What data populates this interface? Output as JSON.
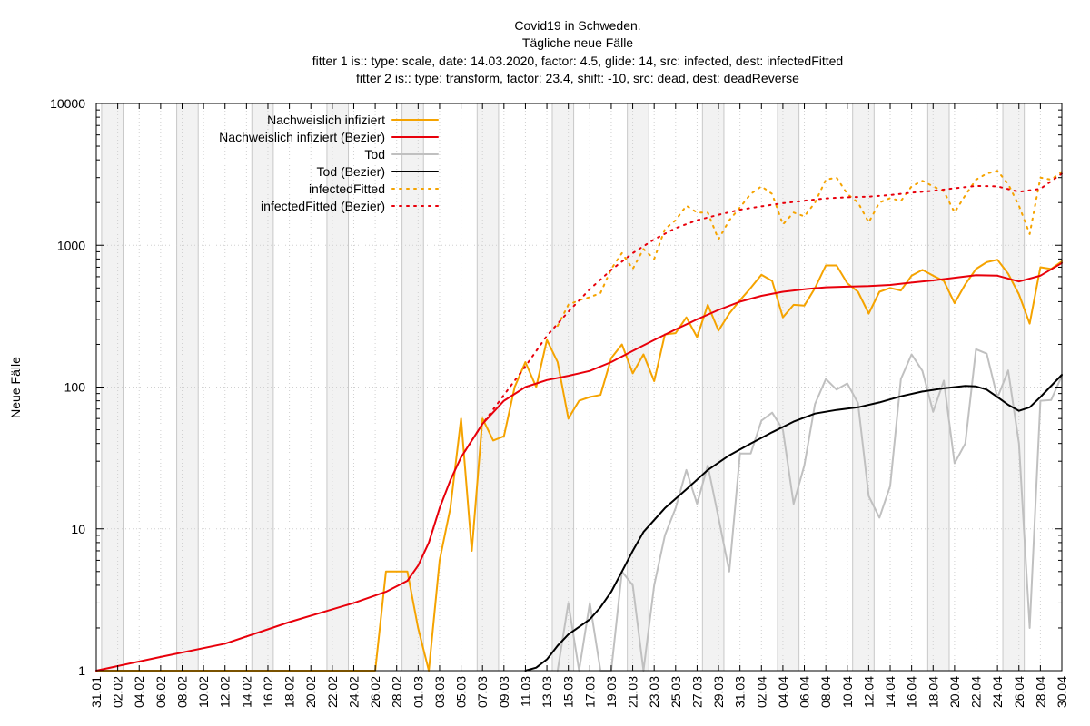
{
  "chart_data": {
    "type": "line",
    "title_lines": [
      "Covid19 in Schweden.",
      "Tägliche neue Fälle",
      "fitter 1 is:: type: scale, date: 14.03.2020, factor: 4.5, glide: 14, src: infected, dest: infectedFitted",
      "fitter 2 is:: type: transform, factor: 23.4, shift: -10, src: dead, dest: deadReverse"
    ],
    "ylabel": "Neue Fälle",
    "yscale": "log",
    "ylim": [
      1,
      10000
    ],
    "yticks": [
      1,
      10,
      100,
      1000,
      10000
    ],
    "ytick_labels": [
      "1",
      "10",
      "100",
      "1000",
      "10000"
    ],
    "x_start": "31.01",
    "x_end": "30.04",
    "xtick_labels": [
      "31.01",
      "02.02",
      "04.02",
      "06.02",
      "08.02",
      "10.02",
      "12.02",
      "14.02",
      "16.02",
      "18.02",
      "20.02",
      "22.02",
      "24.02",
      "26.02",
      "28.02",
      "01.03",
      "03.03",
      "05.03",
      "07.03",
      "09.03",
      "11.03",
      "13.03",
      "15.03",
      "17.03",
      "19.03",
      "21.03",
      "23.03",
      "25.03",
      "27.03",
      "29.03",
      "31.03",
      "02.04",
      "04.04",
      "06.04",
      "08.04",
      "10.04",
      "12.04",
      "14.04",
      "16.04",
      "18.04",
      "20.04",
      "22.04",
      "24.04",
      "26.04",
      "28.04",
      "30.04"
    ],
    "weekend_bands": [
      [
        "01.02",
        "02.02"
      ],
      [
        "08.02",
        "09.02"
      ],
      [
        "15.02",
        "16.02"
      ],
      [
        "22.02",
        "23.02"
      ],
      [
        "29.02",
        "01.03"
      ],
      [
        "07.03",
        "08.03"
      ],
      [
        "14.03",
        "15.03"
      ],
      [
        "21.03",
        "22.03"
      ],
      [
        "28.03",
        "29.03"
      ],
      [
        "04.04",
        "05.04"
      ],
      [
        "11.04",
        "12.04"
      ],
      [
        "18.04",
        "19.04"
      ],
      [
        "25.04",
        "26.04"
      ]
    ],
    "grid": true,
    "legend_position": "top-left",
    "series": [
      {
        "name": "Nachweislich infiziert",
        "color": "#f5a300",
        "style": "solid",
        "points": [
          [
            "31.01",
            1
          ],
          [
            "26.02",
            1
          ],
          [
            "27.02",
            5
          ],
          [
            "29.02",
            5
          ],
          [
            "01.03",
            2
          ],
          [
            "02.03",
            1
          ],
          [
            "03.03",
            6
          ],
          [
            "04.03",
            14
          ],
          [
            "05.03",
            60
          ],
          [
            "06.03",
            7
          ],
          [
            "07.03",
            60
          ],
          [
            "08.03",
            42
          ],
          [
            "09.03",
            45
          ],
          [
            "10.03",
            100
          ],
          [
            "11.03",
            150
          ],
          [
            "12.03",
            100
          ],
          [
            "13.03",
            215
          ],
          [
            "14.03",
            150
          ],
          [
            "15.03",
            60
          ],
          [
            "16.03",
            80
          ],
          [
            "17.03",
            85
          ],
          [
            "18.03",
            88
          ],
          [
            "19.03",
            160
          ],
          [
            "20.03",
            200
          ],
          [
            "21.03",
            125
          ],
          [
            "22.03",
            170
          ],
          [
            "23.03",
            110
          ],
          [
            "24.03",
            235
          ],
          [
            "25.03",
            240
          ],
          [
            "26.03",
            310
          ],
          [
            "27.03",
            225
          ],
          [
            "28.03",
            380
          ],
          [
            "29.03",
            250
          ],
          [
            "30.03",
            330
          ],
          [
            "31.03",
            410
          ],
          [
            "01.04",
            500
          ],
          [
            "02.04",
            620
          ],
          [
            "03.04",
            560
          ],
          [
            "04.04",
            310
          ],
          [
            "05.04",
            380
          ],
          [
            "06.04",
            375
          ],
          [
            "07.04",
            500
          ],
          [
            "08.04",
            720
          ],
          [
            "09.04",
            720
          ],
          [
            "10.04",
            540
          ],
          [
            "11.04",
            470
          ],
          [
            "12.04",
            330
          ],
          [
            "13.04",
            470
          ],
          [
            "14.04",
            500
          ],
          [
            "15.04",
            480
          ],
          [
            "16.04",
            610
          ],
          [
            "17.04",
            670
          ],
          [
            "18.04",
            610
          ],
          [
            "19.04",
            560
          ],
          [
            "20.04",
            390
          ],
          [
            "21.04",
            530
          ],
          [
            "22.04",
            680
          ],
          [
            "23.04",
            760
          ],
          [
            "24.04",
            790
          ],
          [
            "25.04",
            630
          ],
          [
            "26.04",
            450
          ],
          [
            "27.04",
            280
          ],
          [
            "28.04",
            700
          ],
          [
            "29.04",
            680
          ],
          [
            "30.04",
            770
          ]
        ]
      },
      {
        "name": "Nachweislich infiziert (Bezier)",
        "color": "#e8000b",
        "style": "solid",
        "points": [
          [
            "31.01",
            1
          ],
          [
            "06.02",
            1.25
          ],
          [
            "12.02",
            1.55
          ],
          [
            "18.02",
            2.2
          ],
          [
            "24.02",
            3.0
          ],
          [
            "27.02",
            3.6
          ],
          [
            "29.02",
            4.3
          ],
          [
            "01.03",
            5.5
          ],
          [
            "02.03",
            8
          ],
          [
            "03.03",
            14
          ],
          [
            "04.03",
            22
          ],
          [
            "05.03",
            32
          ],
          [
            "07.03",
            55
          ],
          [
            "09.03",
            80
          ],
          [
            "11.03",
            100
          ],
          [
            "13.03",
            112
          ],
          [
            "15.03",
            120
          ],
          [
            "17.03",
            130
          ],
          [
            "19.03",
            150
          ],
          [
            "21.03",
            180
          ],
          [
            "23.03",
            215
          ],
          [
            "25.03",
            255
          ],
          [
            "27.03",
            300
          ],
          [
            "29.03",
            350
          ],
          [
            "31.03",
            400
          ],
          [
            "02.04",
            440
          ],
          [
            "04.04",
            470
          ],
          [
            "06.04",
            490
          ],
          [
            "08.04",
            505
          ],
          [
            "10.04",
            510
          ],
          [
            "12.04",
            515
          ],
          [
            "14.04",
            525
          ],
          [
            "16.04",
            545
          ],
          [
            "18.04",
            565
          ],
          [
            "20.04",
            590
          ],
          [
            "22.04",
            615
          ],
          [
            "24.04",
            610
          ],
          [
            "26.04",
            555
          ],
          [
            "28.04",
            610
          ],
          [
            "30.04",
            750
          ]
        ]
      },
      {
        "name": "Tod",
        "color": "#c0c0c0",
        "style": "solid",
        "points": [
          [
            "14.03",
            1
          ],
          [
            "15.03",
            3
          ],
          [
            "16.03",
            1
          ],
          [
            "17.03",
            3
          ],
          [
            "18.03",
            1
          ],
          [
            "19.03",
            1
          ],
          [
            "20.03",
            5
          ],
          [
            "21.03",
            4
          ],
          [
            "22.03",
            1
          ],
          [
            "23.03",
            4
          ],
          [
            "24.03",
            9
          ],
          [
            "25.03",
            14
          ],
          [
            "26.03",
            26
          ],
          [
            "27.03",
            15
          ],
          [
            "28.03",
            28
          ],
          [
            "29.03",
            12
          ],
          [
            "30.03",
            5
          ],
          [
            "31.03",
            34
          ],
          [
            "01.04",
            34
          ],
          [
            "02.04",
            58
          ],
          [
            "03.04",
            66
          ],
          [
            "04.04",
            50
          ],
          [
            "05.04",
            15
          ],
          [
            "06.04",
            28
          ],
          [
            "07.04",
            76
          ],
          [
            "08.04",
            114
          ],
          [
            "09.04",
            96
          ],
          [
            "10.04",
            106
          ],
          [
            "11.04",
            77
          ],
          [
            "12.04",
            17
          ],
          [
            "13.04",
            12
          ],
          [
            "14.04",
            20
          ],
          [
            "15.04",
            114
          ],
          [
            "16.04",
            170
          ],
          [
            "17.04",
            130
          ],
          [
            "18.04",
            67
          ],
          [
            "19.04",
            111
          ],
          [
            "20.04",
            29
          ],
          [
            "21.04",
            40
          ],
          [
            "22.04",
            185
          ],
          [
            "23.04",
            172
          ],
          [
            "24.04",
            84
          ],
          [
            "25.04",
            131
          ],
          [
            "26.04",
            40
          ],
          [
            "27.04",
            2
          ],
          [
            "28.04",
            80
          ],
          [
            "29.04",
            81
          ],
          [
            "30.04",
            120
          ]
        ]
      },
      {
        "name": "Tod (Bezier)",
        "color": "#000000",
        "style": "solid",
        "points": [
          [
            "11.03",
            1
          ],
          [
            "12.03",
            1.05
          ],
          [
            "13.03",
            1.2
          ],
          [
            "14.03",
            1.5
          ],
          [
            "15.03",
            1.8
          ],
          [
            "17.03",
            2.3
          ],
          [
            "18.03",
            2.8
          ],
          [
            "19.03",
            3.6
          ],
          [
            "20.03",
            5
          ],
          [
            "21.03",
            7
          ],
          [
            "22.03",
            9.5
          ],
          [
            "24.03",
            14
          ],
          [
            "26.03",
            19
          ],
          [
            "28.03",
            26
          ],
          [
            "30.03",
            33
          ],
          [
            "01.04",
            40
          ],
          [
            "03.04",
            48
          ],
          [
            "05.04",
            57
          ],
          [
            "07.04",
            65
          ],
          [
            "09.04",
            69
          ],
          [
            "11.04",
            72
          ],
          [
            "13.04",
            78
          ],
          [
            "15.04",
            86
          ],
          [
            "17.04",
            93
          ],
          [
            "19.04",
            98
          ],
          [
            "21.04",
            102
          ],
          [
            "22.04",
            101
          ],
          [
            "23.04",
            96
          ],
          [
            "24.04",
            85
          ],
          [
            "25.04",
            75
          ],
          [
            "26.04",
            68
          ],
          [
            "27.04",
            72
          ],
          [
            "28.04",
            85
          ],
          [
            "30.04",
            122
          ]
        ]
      },
      {
        "name": "infectedFitted",
        "color": "#f5a300",
        "style": "dotted",
        "points": [
          [
            "14.03",
            270
          ],
          [
            "15.03",
            380
          ],
          [
            "16.03",
            410
          ],
          [
            "17.03",
            430
          ],
          [
            "18.03",
            460
          ],
          [
            "19.03",
            680
          ],
          [
            "20.03",
            880
          ],
          [
            "21.03",
            680
          ],
          [
            "22.03",
            940
          ],
          [
            "23.03",
            800
          ],
          [
            "24.03",
            1300
          ],
          [
            "25.03",
            1500
          ],
          [
            "26.03",
            1900
          ],
          [
            "27.03",
            1700
          ],
          [
            "28.03",
            1700
          ],
          [
            "29.03",
            1100
          ],
          [
            "30.03",
            1500
          ],
          [
            "31.03",
            1850
          ],
          [
            "01.04",
            2300
          ],
          [
            "02.04",
            2600
          ],
          [
            "03.04",
            2300
          ],
          [
            "04.04",
            1400
          ],
          [
            "05.04",
            1700
          ],
          [
            "06.04",
            1600
          ],
          [
            "07.04",
            2000
          ],
          [
            "08.04",
            2900
          ],
          [
            "09.04",
            3000
          ],
          [
            "10.04",
            2300
          ],
          [
            "11.04",
            2000
          ],
          [
            "12.04",
            1450
          ],
          [
            "13.04",
            2000
          ],
          [
            "14.04",
            2150
          ],
          [
            "15.04",
            2050
          ],
          [
            "16.04",
            2600
          ],
          [
            "17.04",
            2850
          ],
          [
            "18.04",
            2600
          ],
          [
            "19.04",
            2400
          ],
          [
            "20.04",
            1700
          ],
          [
            "21.04",
            2250
          ],
          [
            "22.04",
            2900
          ],
          [
            "23.04",
            3200
          ],
          [
            "24.04",
            3350
          ],
          [
            "25.04",
            2700
          ],
          [
            "26.04",
            1900
          ],
          [
            "27.04",
            1200
          ],
          [
            "28.04",
            3000
          ],
          [
            "29.04",
            2900
          ],
          [
            "30.04",
            3300
          ]
        ]
      },
      {
        "name": "infectedFitted (Bezier)",
        "color": "#e8000b",
        "style": "dotted",
        "points": [
          [
            "05.03",
            32
          ],
          [
            "07.03",
            55
          ],
          [
            "09.03",
            88
          ],
          [
            "11.03",
            140
          ],
          [
            "13.03",
            230
          ],
          [
            "15.03",
            340
          ],
          [
            "17.03",
            490
          ],
          [
            "19.03",
            670
          ],
          [
            "21.03",
            880
          ],
          [
            "23.03",
            1100
          ],
          [
            "25.03",
            1320
          ],
          [
            "27.03",
            1500
          ],
          [
            "29.03",
            1640
          ],
          [
            "31.03",
            1780
          ],
          [
            "02.04",
            1880
          ],
          [
            "04.04",
            1980
          ],
          [
            "06.04",
            2060
          ],
          [
            "08.04",
            2140
          ],
          [
            "10.04",
            2180
          ],
          [
            "12.04",
            2200
          ],
          [
            "14.04",
            2260
          ],
          [
            "16.04",
            2350
          ],
          [
            "18.04",
            2420
          ],
          [
            "20.04",
            2520
          ],
          [
            "22.04",
            2620
          ],
          [
            "24.04",
            2600
          ],
          [
            "26.04",
            2380
          ],
          [
            "28.04",
            2500
          ],
          [
            "30.04",
            3200
          ]
        ]
      }
    ]
  }
}
